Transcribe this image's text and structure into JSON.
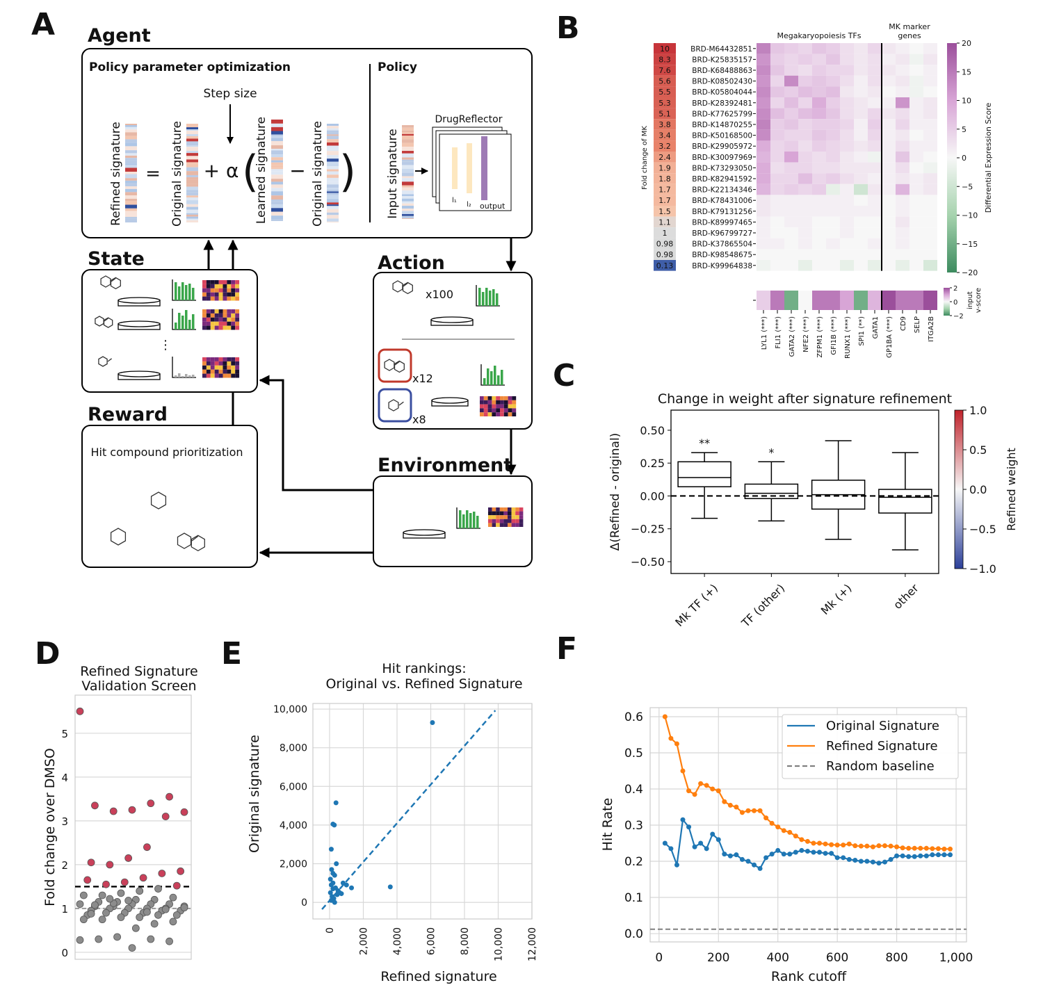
{
  "diagram": {
    "panel": "A",
    "agent": "Agent",
    "policy_opt": "Policy parameter optimization",
    "policy": "Policy",
    "step_size": "Step size",
    "equation": [
      "Refined signature",
      "=",
      "Original signature",
      "+ α",
      "(",
      "Learned signature",
      "−",
      "Original signature",
      ")"
    ],
    "input_signature": "Input signature",
    "drugreflector": "DrugReflector",
    "layers": [
      "l₁",
      "l₂",
      "output"
    ],
    "state": "State",
    "action": "Action",
    "action_counts": [
      "x100",
      "x12",
      "x8"
    ],
    "reward": "Reward",
    "reward_text": "Hit compound prioritization",
    "environment": "Environment"
  },
  "chart_data": [
    {
      "type": "heatmap",
      "panel": "B",
      "row_label_title": "Fold change of MK",
      "row_values": [
        10,
        8.3,
        7.6,
        5.6,
        5.5,
        5.3,
        5.1,
        3.8,
        3.4,
        3.2,
        2.4,
        1.9,
        1.8,
        1.7,
        1.7,
        1.5,
        1.1,
        1,
        0.98,
        0.98,
        0.13
      ],
      "row_labels": [
        "BRD-M64432851",
        "BRD-K25835157",
        "BRD-K68488863",
        "BRD-K08502430",
        "BRD-K05804044",
        "BRD-K28392481",
        "BRD-K77625799",
        "BRD-K14870255",
        "BRD-K50168500",
        "BRD-K29905972",
        "BRD-K30097969",
        "BRD-K73293050",
        "BRD-K82941592",
        "BRD-K22134346",
        "BRD-K78431006",
        "BRD-K79131256",
        "BRD-K89997465",
        "BRD-K96799727",
        "BRD-K37865504",
        "BRD-K98548675",
        "BRD-K99964838"
      ],
      "column_groups": [
        {
          "name": "Megakaryopoiesis TFs",
          "columns": [
            "LYL1 (***)",
            "FLI1 (***)",
            "GATA2 (***)",
            "NFE2 (***)",
            "ZFPM1 (***)",
            "GFI1B (***)",
            "RUNX1 (***)",
            "SPI1 (**)",
            "GATA1"
          ]
        },
        {
          "name": [
            "MK marker",
            "genes"
          ],
          "columns": [
            "GP1BA (***)",
            "CD9",
            "SELP",
            "ITGA2B"
          ]
        }
      ],
      "values": [
        [
          14,
          6,
          5,
          4,
          6,
          5,
          3,
          2,
          4,
          2,
          1,
          0,
          1
        ],
        [
          12,
          5,
          4,
          5,
          4,
          6,
          3,
          2,
          3,
          1,
          2,
          -1,
          2
        ],
        [
          13,
          6,
          4,
          3,
          5,
          4,
          4,
          2,
          3,
          2,
          1,
          0,
          1
        ],
        [
          12,
          4,
          13,
          5,
          6,
          5,
          3,
          1,
          3,
          1,
          2,
          -1,
          1
        ],
        [
          13,
          6,
          5,
          7,
          6,
          7,
          2,
          1,
          2,
          0,
          1,
          -1,
          0
        ],
        [
          12,
          4,
          7,
          4,
          9,
          5,
          3,
          2,
          1,
          1,
          12,
          1,
          2
        ],
        [
          13,
          7,
          5,
          7,
          8,
          6,
          3,
          2,
          4,
          2,
          3,
          1,
          2
        ],
        [
          14,
          5,
          6,
          4,
          5,
          5,
          4,
          1,
          5,
          1,
          4,
          1,
          1
        ],
        [
          13,
          5,
          4,
          4,
          6,
          5,
          3,
          1,
          4,
          1,
          2,
          0,
          1
        ],
        [
          9,
          4,
          5,
          3,
          5,
          4,
          3,
          2,
          3,
          1,
          3,
          1,
          1
        ],
        [
          8,
          4,
          10,
          4,
          3,
          4,
          2,
          1,
          -1,
          1,
          6,
          1,
          0
        ],
        [
          9,
          3,
          4,
          4,
          3,
          3,
          2,
          2,
          2,
          1,
          3,
          0,
          -1
        ],
        [
          9,
          4,
          4,
          7,
          4,
          5,
          3,
          2,
          1,
          1,
          2,
          1,
          2
        ],
        [
          8,
          4,
          5,
          4,
          5,
          -2,
          1,
          -5,
          2,
          1,
          8,
          1,
          2
        ],
        [
          2,
          1,
          1,
          1,
          1,
          1,
          1,
          0,
          1,
          0,
          1,
          0,
          0
        ],
        [
          2,
          1,
          1,
          1,
          1,
          1,
          1,
          1,
          1,
          0,
          1,
          0,
          0
        ],
        [
          1,
          0,
          1,
          1,
          0,
          0,
          1,
          0,
          0,
          0,
          2,
          0,
          0
        ],
        [
          1,
          0,
          0,
          1,
          0,
          0,
          1,
          0,
          0,
          0,
          1,
          0,
          0
        ],
        [
          1,
          1,
          0,
          1,
          0,
          1,
          0,
          0,
          1,
          0,
          1,
          0,
          0
        ],
        [
          0,
          0,
          0,
          0,
          0,
          0,
          0,
          0,
          0,
          0,
          0,
          0,
          0
        ],
        [
          -1,
          0,
          0,
          -2,
          0,
          0,
          -2,
          0,
          -2,
          0,
          -2,
          0,
          -4
        ]
      ],
      "clim": [
        -20,
        20
      ],
      "cmap": [
        "#3d8b5f",
        "#a6d3ae",
        "#f7f7f7",
        "#d8a5d6",
        "#9b4f9b"
      ],
      "colorbar": {
        "label": "Differential Expression Score",
        "ticks": [
          20,
          15,
          10,
          5,
          0,
          {
            "value": -5,
            "label": "−5"
          },
          {
            "value": -10,
            "label": "−10"
          },
          {
            "value": -15,
            "label": "−15"
          },
          {
            "value": -20,
            "label": "−20"
          }
        ]
      },
      "input_row": {
        "label": [
          "input",
          "v-score"
        ],
        "values": [
          0.5,
          1.5,
          -1.5,
          0,
          1.5,
          1.5,
          1,
          -1.5,
          0.8,
          2,
          1.5,
          1.5,
          2.2
        ],
        "clim": [
          -2,
          2
        ],
        "ticks": [
          2,
          0,
          {
            "value": -2,
            "label": "−2"
          }
        ]
      }
    },
    {
      "type": "box",
      "panel": "C",
      "title": "Change in weight after signature refinement",
      "ylabel": "Δ(Refined - original)",
      "categories": [
        "Mk TF (+)",
        "TF (other)",
        "Mk (+)",
        "other"
      ],
      "whislo": [
        -0.17,
        -0.19,
        -0.33,
        -0.41
      ],
      "q1": [
        0.07,
        -0.02,
        -0.1,
        -0.13
      ],
      "med": [
        0.14,
        0.02,
        0.01,
        -0.01
      ],
      "q3": [
        0.26,
        0.09,
        0.12,
        0.05
      ],
      "whishi": [
        0.33,
        0.26,
        0.42,
        0.33
      ],
      "annotations": [
        "**",
        "*",
        null,
        null
      ],
      "reference_line": 0,
      "ylim": [
        -0.59,
        0.653
      ],
      "yticks": [
        {
          "value": -0.5,
          "label": "−0.50"
        },
        {
          "value": -0.25,
          "label": "−0.25"
        },
        {
          "value": 0,
          "label": "0.00"
        },
        0.25,
        {
          "value": 0.5,
          "label": "0.50"
        }
      ],
      "colorbar": {
        "label": "Refined weight",
        "clim": [
          -1,
          1
        ],
        "colors": [
          "#2b3f99",
          "#f7f7f7",
          "#c0222a"
        ],
        "ticks": [
          {
            "value": 1,
            "label": "1.0"
          },
          0.5,
          {
            "value": 0,
            "label": "0.0"
          },
          {
            "value": -0.5,
            "label": "−0.5"
          },
          {
            "value": -1,
            "label": "−1.0"
          }
        ]
      }
    },
    {
      "type": "strip",
      "panel": "D",
      "title": [
        "Refined Signature",
        "Validation Screen"
      ],
      "ylabel": "Fold change over DMSO",
      "values": [
        5.5,
        3.55,
        3.4,
        3.25,
        3.22,
        3.35,
        3.2,
        3.1,
        2.4,
        2.15,
        2.0,
        2.05,
        1.85,
        1.8,
        1.7,
        1.6,
        1.55,
        1.65,
        1.52,
        1.45,
        1.4,
        1.35,
        1.3,
        1.3,
        1.25,
        1.2,
        1.2,
        1.15,
        1.15,
        1.1,
        1.1,
        1.1,
        1.1,
        1.05,
        1.05,
        1.05,
        1.0,
        1.0,
        1.0,
        1.0,
        0.95,
        0.95,
        0.95,
        0.9,
        0.9,
        0.9,
        0.85,
        0.85,
        0.85,
        0.8,
        0.8,
        0.75,
        0.75,
        0.7,
        0.65,
        0.55,
        0.35,
        0.3,
        0.28,
        0.25,
        0.3,
        0.1,
        1.12,
        1.08,
        1.02,
        0.98,
        0.92,
        1.18,
        1.22,
        0.88
      ],
      "threshold": 1.5,
      "baseline": 1,
      "color_above": "#c9405a",
      "color_below": "#8c8c8c",
      "ylim": [
        -0.16,
        5.87
      ],
      "yticks": [
        0,
        1,
        2,
        3,
        4,
        5
      ],
      "grid": true
    },
    {
      "type": "scatter",
      "panel": "E",
      "title": [
        "Hit rankings:",
        "Original vs. Refined Signature"
      ],
      "xlabel": "Refined signature",
      "ylabel": "Original signature",
      "color": "#1f77b4",
      "x": [
        6100,
        3600,
        380,
        200,
        280,
        100,
        400,
        120,
        200,
        300,
        50,
        100,
        200,
        350,
        500,
        600,
        800,
        1000,
        1300,
        150,
        250,
        100,
        450,
        300,
        50,
        700,
        200
      ],
      "y": [
        9300,
        800,
        5150,
        4050,
        4000,
        2750,
        2000,
        1700,
        1500,
        1400,
        1200,
        900,
        700,
        750,
        600,
        500,
        1000,
        900,
        750,
        300,
        200,
        100,
        400,
        0,
        500,
        450,
        1000
      ],
      "reference_line": {
        "x": [
          -450,
          9830
        ],
        "y": [
          -360,
          9930
        ]
      },
      "xlim": [
        -990,
        12000
      ],
      "ylim": [
        -860,
        10290
      ],
      "xticks": [
        0,
        {
          "value": 2000,
          "label": "2,000"
        },
        {
          "value": 4000,
          "label": "4,000"
        },
        {
          "value": 6000,
          "label": "6,000"
        },
        {
          "value": 8000,
          "label": "8,000"
        },
        {
          "value": 10000,
          "label": "10,000"
        },
        {
          "value": 12000,
          "label": "12,000"
        }
      ],
      "yticks": [
        0,
        {
          "value": 2000,
          "label": "2,000"
        },
        {
          "value": 4000,
          "label": "4,000"
        },
        {
          "value": 6000,
          "label": "6,000"
        },
        {
          "value": 8000,
          "label": "8,000"
        },
        {
          "value": 10000,
          "label": "10,000"
        }
      ],
      "grid": true
    },
    {
      "type": "line",
      "panel": "F",
      "xlabel": "Rank cutoff",
      "ylabel": "Hit Rate",
      "x": [
        20,
        40,
        60,
        80,
        100,
        120,
        140,
        160,
        180,
        200,
        220,
        240,
        260,
        280,
        300,
        320,
        340,
        360,
        380,
        400,
        420,
        440,
        460,
        480,
        500,
        520,
        540,
        560,
        580,
        600,
        620,
        640,
        660,
        680,
        700,
        720,
        740,
        760,
        780,
        800,
        820,
        840,
        860,
        880,
        900,
        920,
        940,
        960,
        980
      ],
      "series": [
        {
          "name": "Original Signature",
          "color": "#1f77b4",
          "values": [
            0.25,
            0.235,
            0.19,
            0.315,
            0.295,
            0.24,
            0.25,
            0.235,
            0.275,
            0.26,
            0.22,
            0.215,
            0.218,
            0.205,
            0.2,
            0.19,
            0.18,
            0.21,
            0.22,
            0.23,
            0.22,
            0.22,
            0.225,
            0.23,
            0.228,
            0.225,
            0.225,
            0.222,
            0.222,
            0.21,
            0.21,
            0.205,
            0.203,
            0.2,
            0.2,
            0.198,
            0.195,
            0.198,
            0.205,
            0.215,
            0.215,
            0.213,
            0.213,
            0.215,
            0.215,
            0.218,
            0.218,
            0.218,
            0.218
          ]
        },
        {
          "name": "Refined Signature",
          "color": "#ff7f0e",
          "values": [
            0.6,
            0.54,
            0.525,
            0.45,
            0.395,
            0.385,
            0.415,
            0.41,
            0.4,
            0.395,
            0.365,
            0.355,
            0.35,
            0.335,
            0.34,
            0.34,
            0.34,
            0.32,
            0.305,
            0.295,
            0.285,
            0.28,
            0.27,
            0.26,
            0.255,
            0.25,
            0.25,
            0.248,
            0.246,
            0.245,
            0.245,
            0.248,
            0.243,
            0.242,
            0.242,
            0.24,
            0.243,
            0.243,
            0.242,
            0.24,
            0.237,
            0.236,
            0.236,
            0.236,
            0.236,
            0.235,
            0.235,
            0.234,
            0.234
          ]
        }
      ],
      "baseline": {
        "name": "Random baseline",
        "value": 0.012,
        "color": "#808080"
      },
      "xlim": [
        -30,
        1035
      ],
      "ylim": [
        -0.023,
        0.625
      ],
      "xticks": [
        0,
        200,
        400,
        600,
        800,
        {
          "value": 1000,
          "label": "1,000"
        }
      ],
      "yticks": [
        {
          "value": 0,
          "label": "0.0"
        },
        0.1,
        0.2,
        0.3,
        0.4,
        0.5,
        0.6
      ],
      "grid": true,
      "legend": "upper right"
    }
  ]
}
